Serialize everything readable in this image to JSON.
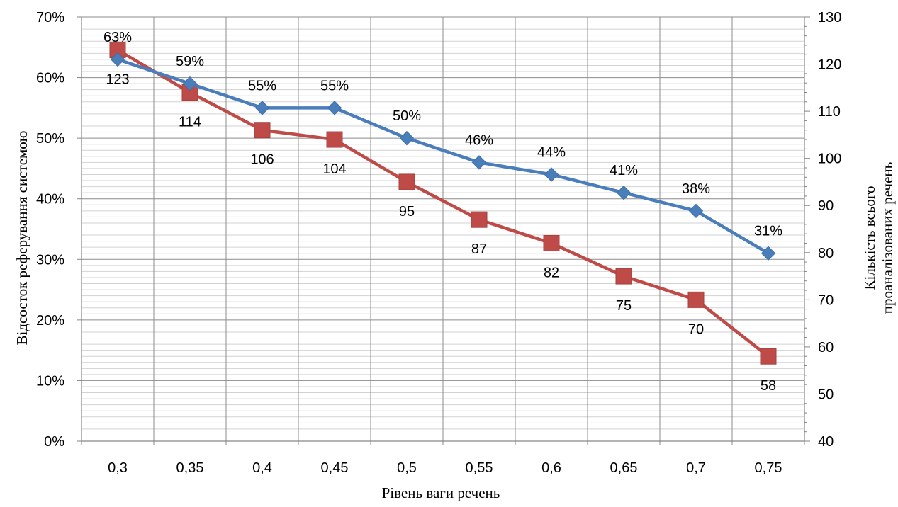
{
  "chart_data": {
    "type": "line",
    "xlabel": "Рівень ваги речень",
    "ylabel": "Відсосток реферування  системою",
    "y2label_lines": [
      "Кількість всього",
      "проаналізованих речень"
    ],
    "categories": [
      "0,3",
      "0,35",
      "0,4",
      "0,45",
      "0,5",
      "0,55",
      "0,6",
      "0,65",
      "0,7",
      "0,75"
    ],
    "ylim": [
      0,
      70
    ],
    "y2lim": [
      40,
      130
    ],
    "y_ticks": [
      "0%",
      "10%",
      "20%",
      "30%",
      "40%",
      "50%",
      "60%",
      "70%"
    ],
    "y2_ticks": [
      "40",
      "50",
      "60",
      "70",
      "80",
      "90",
      "100",
      "110",
      "120",
      "130"
    ],
    "grid": true,
    "legend": "none",
    "series": [
      {
        "axis": "left",
        "marker": "diamond",
        "color": "#4a7ebb",
        "values": [
          63,
          59,
          55,
          55,
          50,
          46,
          44,
          41,
          38,
          31
        ],
        "labels": [
          "63%",
          "59%",
          "55%",
          "55%",
          "50%",
          "46%",
          "44%",
          "41%",
          "38%",
          "31%"
        ]
      },
      {
        "axis": "right",
        "marker": "square",
        "color": "#be4b48",
        "values": [
          123,
          114,
          106,
          104,
          95,
          87,
          82,
          75,
          70,
          58
        ],
        "labels": [
          "123",
          "114",
          "106",
          "104",
          "95",
          "87",
          "82",
          "75",
          "70",
          "58"
        ]
      }
    ]
  }
}
